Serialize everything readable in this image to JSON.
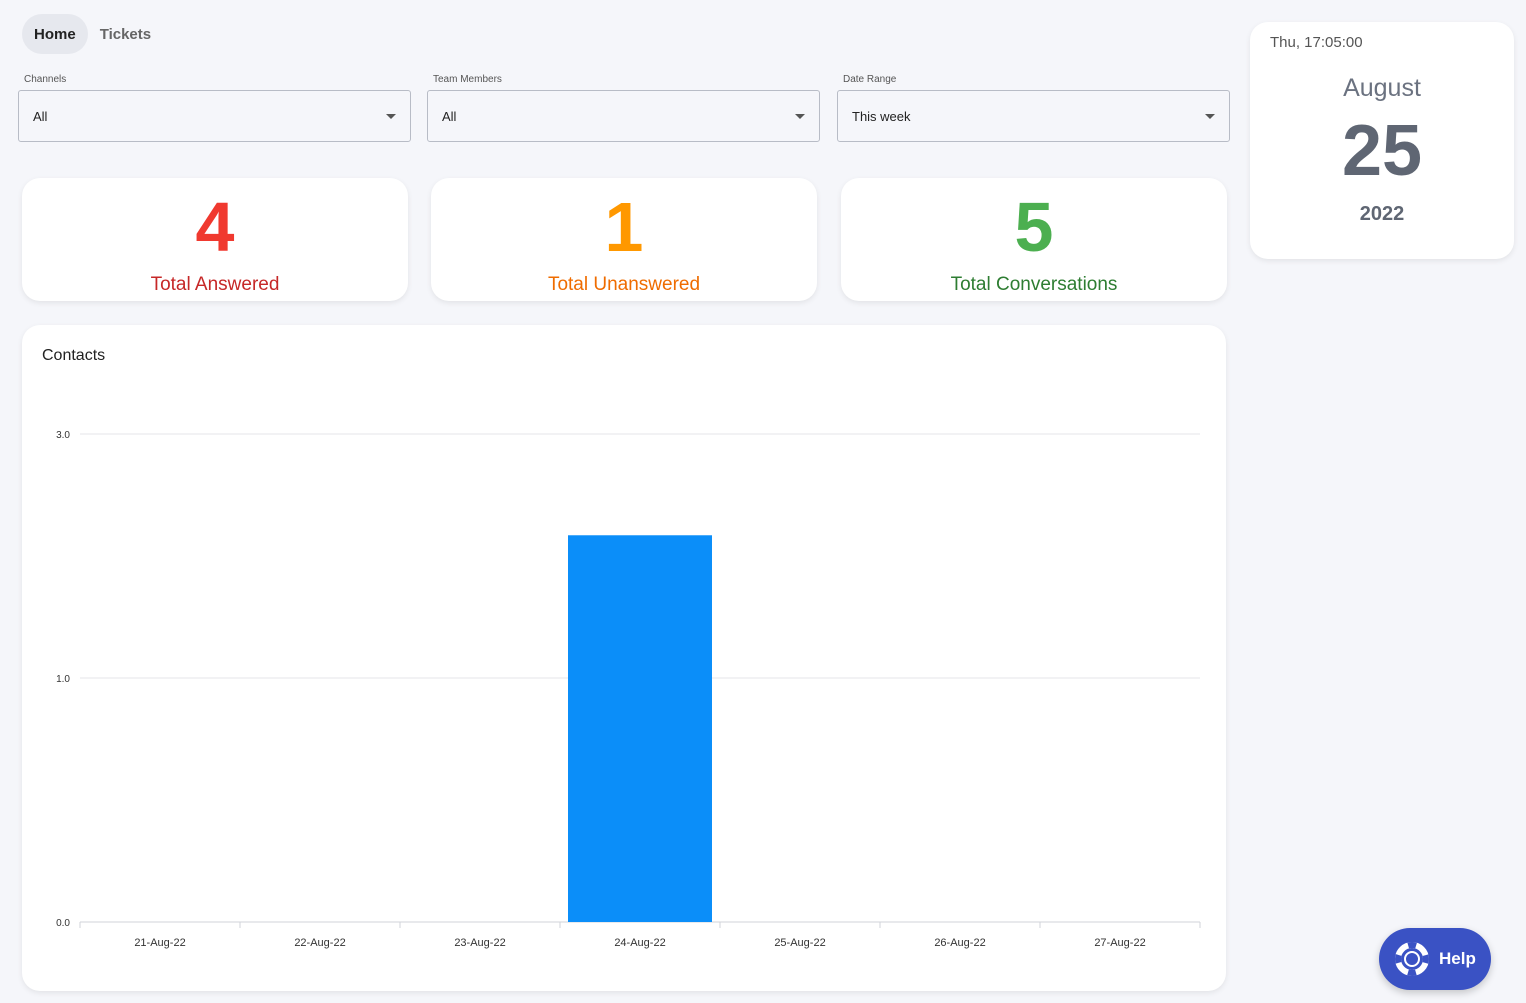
{
  "tabs": [
    {
      "label": "Home"
    },
    {
      "label": "Tickets"
    }
  ],
  "filters": {
    "channels": {
      "label": "Channels",
      "value": "All"
    },
    "team_members": {
      "label": "Team Members",
      "value": "All"
    },
    "date_range": {
      "label": "Date Range",
      "value": "This week"
    }
  },
  "stats": {
    "answered": {
      "value": "4",
      "label": "Total Answered",
      "color": "#f0392f",
      "label_color": "#c62828"
    },
    "unanswered": {
      "value": "1",
      "label": "Total Unanswered",
      "color": "#ff9800",
      "label_color": "#ef6c00"
    },
    "conversations": {
      "value": "5",
      "label": "Total Conversations",
      "color": "#4caf50",
      "label_color": "#2e7d32"
    }
  },
  "date_card": {
    "clock": "Thu, 17:05:00",
    "month": "August",
    "day": "25",
    "year": "2022"
  },
  "help": {
    "label": "Help",
    "icon": "lifebuoy-icon"
  },
  "chart_data": {
    "type": "bar",
    "title": "Contacts",
    "categories": [
      "21-Aug-22",
      "22-Aug-22",
      "23-Aug-22",
      "24-Aug-22",
      "25-Aug-22",
      "26-Aug-22",
      "27-Aug-22"
    ],
    "values": [
      0,
      0,
      0,
      2,
      0,
      0,
      0
    ],
    "y_ticks": [
      "0.0",
      "1.0",
      "3.0"
    ],
    "ylim": [
      0,
      3
    ],
    "scale": "log1p",
    "bar_color": "#0b8ef9",
    "grid": true
  }
}
